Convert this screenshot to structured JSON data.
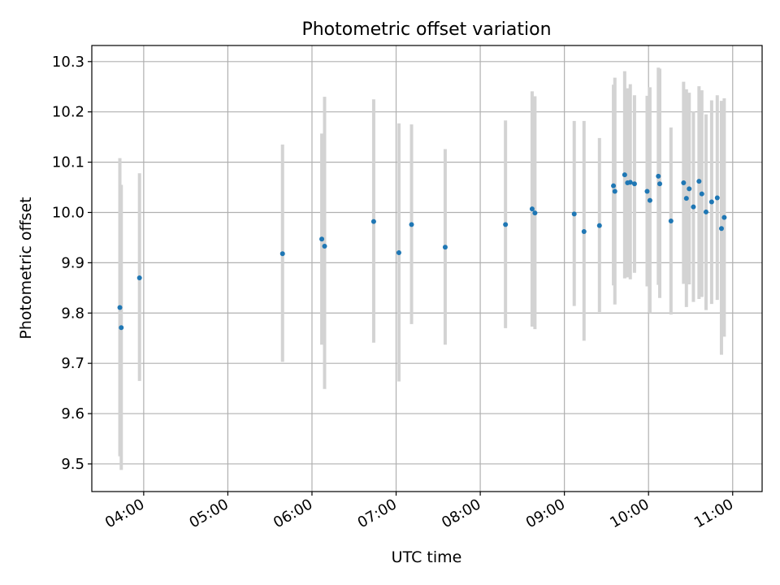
{
  "chart_data": {
    "type": "scatter",
    "title": "Photometric offset variation",
    "xlabel": "UTC time",
    "ylabel": "Photometric offset",
    "x_axis_type": "time",
    "xlim": [
      "03:23",
      "11:21"
    ],
    "ylim": [
      9.445,
      10.332
    ],
    "xticks": [
      "04:00",
      "05:00",
      "06:00",
      "07:00",
      "08:00",
      "09:00",
      "10:00",
      "11:00"
    ],
    "yticks": [
      "9.5",
      "9.6",
      "9.7",
      "9.8",
      "9.9",
      "10.0",
      "10.1",
      "10.2",
      "10.3"
    ],
    "grid": true,
    "colors": {
      "points": "#1f77b4",
      "error_bars": "#d3d3d3",
      "grid": "#b0b0b0"
    },
    "points": [
      {
        "x": "03:43",
        "y": 9.811,
        "ylow": 9.515,
        "yhigh": 10.108
      },
      {
        "x": "03:44",
        "y": 9.771,
        "ylow": 9.488,
        "yhigh": 10.055
      },
      {
        "x": "03:57",
        "y": 9.87,
        "ylow": 9.665,
        "yhigh": 10.078
      },
      {
        "x": "05:39",
        "y": 9.918,
        "ylow": 9.703,
        "yhigh": 10.135
      },
      {
        "x": "06:07",
        "y": 9.947,
        "ylow": 9.737,
        "yhigh": 10.157
      },
      {
        "x": "06:09",
        "y": 9.933,
        "ylow": 9.649,
        "yhigh": 10.23
      },
      {
        "x": "06:44",
        "y": 9.982,
        "ylow": 9.741,
        "yhigh": 10.225
      },
      {
        "x": "07:02",
        "y": 9.92,
        "ylow": 9.664,
        "yhigh": 10.177
      },
      {
        "x": "07:11",
        "y": 9.976,
        "ylow": 9.778,
        "yhigh": 10.175
      },
      {
        "x": "07:35",
        "y": 9.931,
        "ylow": 9.737,
        "yhigh": 10.126
      },
      {
        "x": "08:18",
        "y": 9.976,
        "ylow": 9.77,
        "yhigh": 10.183
      },
      {
        "x": "08:37",
        "y": 10.007,
        "ylow": 9.773,
        "yhigh": 10.241
      },
      {
        "x": "08:39",
        "y": 9.999,
        "ylow": 9.768,
        "yhigh": 10.231
      },
      {
        "x": "09:07",
        "y": 9.997,
        "ylow": 9.814,
        "yhigh": 10.182
      },
      {
        "x": "09:14",
        "y": 9.962,
        "ylow": 9.745,
        "yhigh": 10.182
      },
      {
        "x": "09:25",
        "y": 9.974,
        "ylow": 9.802,
        "yhigh": 10.148
      },
      {
        "x": "09:35",
        "y": 10.053,
        "ylow": 9.855,
        "yhigh": 10.254
      },
      {
        "x": "09:36",
        "y": 10.042,
        "ylow": 9.817,
        "yhigh": 10.268
      },
      {
        "x": "09:43",
        "y": 10.075,
        "ylow": 9.869,
        "yhigh": 10.281
      },
      {
        "x": "09:45",
        "y": 10.059,
        "ylow": 9.871,
        "yhigh": 10.247
      },
      {
        "x": "09:47",
        "y": 10.06,
        "ylow": 9.867,
        "yhigh": 10.255
      },
      {
        "x": "09:50",
        "y": 10.057,
        "ylow": 9.88,
        "yhigh": 10.233
      },
      {
        "x": "09:59",
        "y": 10.042,
        "ylow": 9.853,
        "yhigh": 10.232
      },
      {
        "x": "10:01",
        "y": 10.024,
        "ylow": 9.8,
        "yhigh": 10.249
      },
      {
        "x": "10:07",
        "y": 10.072,
        "ylow": 9.856,
        "yhigh": 10.288
      },
      {
        "x": "10:08",
        "y": 10.057,
        "ylow": 9.83,
        "yhigh": 10.286
      },
      {
        "x": "10:16",
        "y": 9.983,
        "ylow": 9.797,
        "yhigh": 10.169
      },
      {
        "x": "10:25",
        "y": 10.059,
        "ylow": 9.858,
        "yhigh": 10.26
      },
      {
        "x": "10:27",
        "y": 10.028,
        "ylow": 9.812,
        "yhigh": 10.245
      },
      {
        "x": "10:29",
        "y": 10.047,
        "ylow": 9.857,
        "yhigh": 10.238
      },
      {
        "x": "10:32",
        "y": 10.011,
        "ylow": 9.822,
        "yhigh": 10.201
      },
      {
        "x": "10:36",
        "y": 10.062,
        "ylow": 9.828,
        "yhigh": 10.251
      },
      {
        "x": "10:38",
        "y": 10.037,
        "ylow": 9.832,
        "yhigh": 10.243
      },
      {
        "x": "10:41",
        "y": 10.001,
        "ylow": 9.806,
        "yhigh": 10.195
      },
      {
        "x": "10:45",
        "y": 10.021,
        "ylow": 9.818,
        "yhigh": 10.223
      },
      {
        "x": "10:49",
        "y": 10.029,
        "ylow": 9.826,
        "yhigh": 10.233
      },
      {
        "x": "10:52",
        "y": 9.968,
        "ylow": 9.717,
        "yhigh": 10.222
      },
      {
        "x": "10:54",
        "y": 9.99,
        "ylow": 9.753,
        "yhigh": 10.227
      }
    ]
  }
}
